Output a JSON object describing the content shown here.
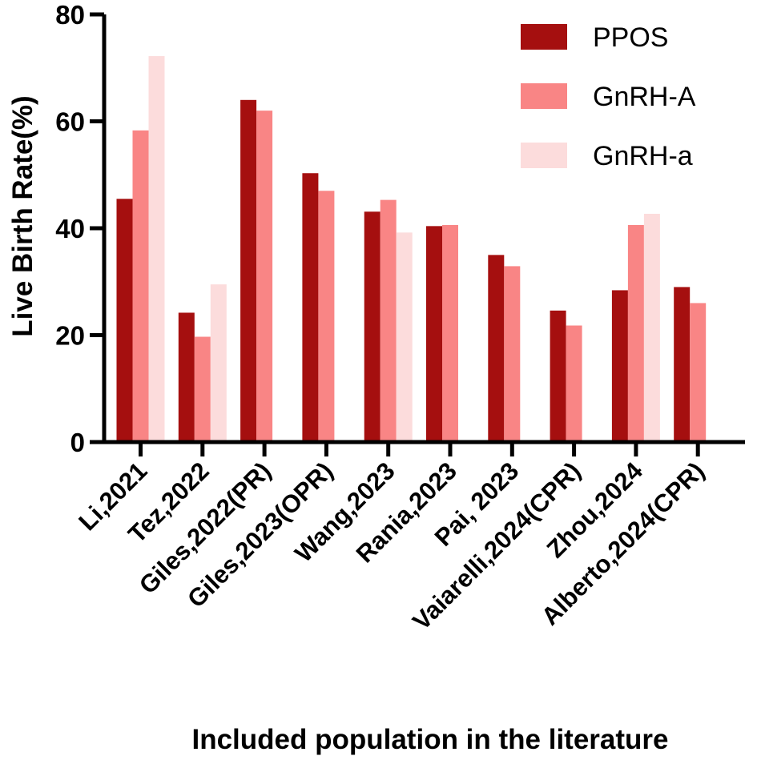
{
  "chart_data": {
    "type": "bar",
    "ylabel": "Live Birth Rate(%)",
    "xlabel": "Included population in the literature",
    "ylim": [
      0,
      80
    ],
    "yticks": [
      0,
      20,
      40,
      60,
      80
    ],
    "legend_position": "top-right",
    "categories": [
      "Li,2021",
      "Tez,2022",
      "Giles,2022(PR)",
      "Giles,2023(OPR)",
      "Wang,2023",
      "Rania,2023",
      "Pai, 2023",
      "Vaiarelli,2024(CPR)",
      "Zhou,2024",
      "Alberto,2024(CPR)"
    ],
    "series": [
      {
        "name": "PPOS",
        "color": "#a50f0f",
        "values": [
          45.5,
          24.2,
          64.0,
          50.3,
          43.1,
          40.4,
          35.0,
          24.6,
          28.4,
          29.0
        ]
      },
      {
        "name": "GnRH-A",
        "color": "#f98585",
        "values": [
          58.3,
          19.7,
          62.0,
          47.0,
          45.3,
          40.6,
          32.9,
          21.8,
          40.6,
          26.0
        ]
      },
      {
        "name": "GnRH-a",
        "color": "#fcdcdc",
        "values": [
          72.2,
          29.5,
          null,
          null,
          39.2,
          null,
          null,
          null,
          42.7,
          null
        ]
      }
    ]
  }
}
